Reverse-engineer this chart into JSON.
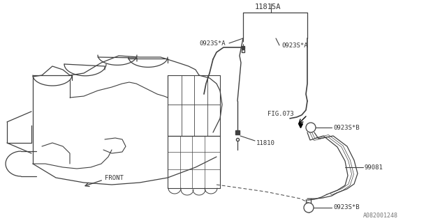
{
  "bg_color": "#ffffff",
  "line_color": "#404040",
  "text_color": "#333333",
  "fig_width": 6.4,
  "fig_height": 3.2,
  "dpi": 100,
  "diagram_id": "A082001248",
  "label_11815A": "11815A",
  "label_0923SA_left": "0923S*A",
  "label_0923SA_right": "0923S*A",
  "label_FIG073": "FIG.073",
  "label_0923SB_top": "0923S*B",
  "label_11810": "11810",
  "label_99081": "99081",
  "label_0923SB_bot": "0923S*B",
  "label_FRONT": "FRONT",
  "label_diag_id": "A082001248"
}
